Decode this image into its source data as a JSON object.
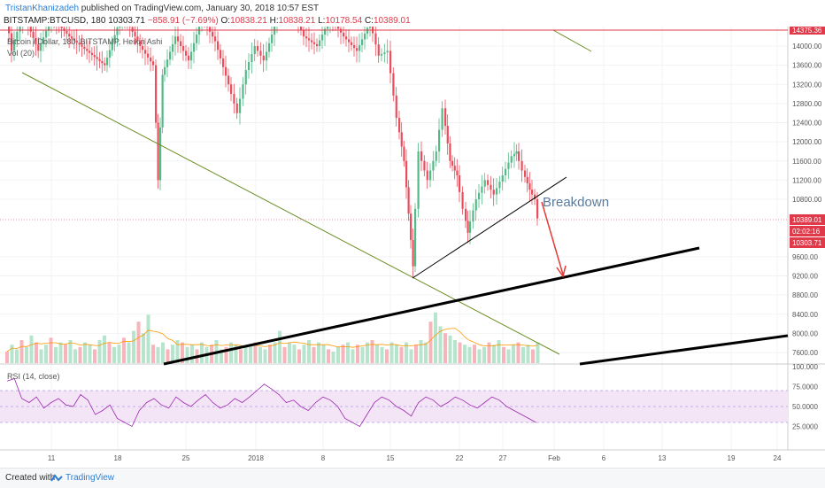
{
  "header": {
    "author": "TristanKhanizadeh",
    "published": " published on TradingView.com, January 30, 2018 10:57 EST",
    "symbol": "BITSTAMP:BTCUSD, 180",
    "last": "10303.71",
    "change": "−858.91 (−7.69%)",
    "open_label": "O:",
    "open": "10838.21",
    "high_label": "H:",
    "high": "10838.21",
    "low_label": "L:",
    "low": "10178.54",
    "close_label": "C:",
    "close": "10389.01"
  },
  "legend": {
    "main": "Bitcoin / Dollar, 180, BITSTAMP, Heikin Ashi",
    "volume": "Vol (20)",
    "rsi": "RSI (14, close)"
  },
  "annotation": "Breakdown",
  "footer": {
    "created": "Created with",
    "brand": "TradingView"
  },
  "colors": {
    "up": "#53b987",
    "down": "#eb4d5c",
    "rsi": "#9c27b0",
    "trend": "#000000",
    "arrow": "#e53935"
  },
  "chart_data": {
    "type": "candlestick",
    "title": "Bitcoin / Dollar, 180, BITSTAMP, Heikin Ashi",
    "price_ticks": [
      "14000.00",
      "13600.00",
      "13200.00",
      "12800.00",
      "12400.00",
      "12000.00",
      "11600.00",
      "11200.00",
      "10800.00",
      "10389.01",
      "02:02:16",
      "10303.71",
      "9600.00",
      "9200.00",
      "8800.00",
      "8400.00",
      "8000.00",
      "7600.00"
    ],
    "top_label": "14375.36",
    "rsi_ticks": [
      "100.000",
      "75.0000",
      "50.0000",
      "25.0000"
    ],
    "x_ticks": [
      "11",
      "18",
      "25",
      "2018",
      "8",
      "15",
      "22",
      "27",
      "Feb",
      "6",
      "13",
      "19",
      "24"
    ],
    "price_path": [
      [
        6,
        15000
      ],
      [
        15,
        13900
      ],
      [
        28,
        14700
      ],
      [
        45,
        13900
      ],
      [
        60,
        14600
      ],
      [
        80,
        14200
      ],
      [
        100,
        13900
      ],
      [
        120,
        13600
      ],
      [
        140,
        14700
      ],
      [
        160,
        14000
      ],
      [
        175,
        13600
      ],
      [
        180,
        11200
      ],
      [
        185,
        13400
      ],
      [
        200,
        14200
      ],
      [
        215,
        13700
      ],
      [
        230,
        14600
      ],
      [
        245,
        14100
      ],
      [
        260,
        13200
      ],
      [
        270,
        12600
      ],
      [
        280,
        13500
      ],
      [
        290,
        14000
      ],
      [
        300,
        13700
      ],
      [
        315,
        14600
      ],
      [
        330,
        14900
      ],
      [
        345,
        14200
      ],
      [
        360,
        14000
      ],
      [
        375,
        14600
      ],
      [
        390,
        14200
      ],
      [
        405,
        13900
      ],
      [
        420,
        14500
      ],
      [
        430,
        13800
      ],
      [
        440,
        13900
      ],
      [
        450,
        12500
      ],
      [
        458,
        11600
      ],
      [
        463,
        10500
      ],
      [
        468,
        9400
      ],
      [
        475,
        11800
      ],
      [
        485,
        11200
      ],
      [
        495,
        11800
      ],
      [
        502,
        12700
      ],
      [
        510,
        11600
      ],
      [
        518,
        11300
      ],
      [
        525,
        10600
      ],
      [
        530,
        10100
      ],
      [
        540,
        10800
      ],
      [
        550,
        11200
      ],
      [
        560,
        10900
      ],
      [
        570,
        11300
      ],
      [
        580,
        11700
      ],
      [
        585,
        11800
      ],
      [
        592,
        11400
      ],
      [
        600,
        11000
      ],
      [
        606,
        10800
      ],
      [
        610,
        10400
      ]
    ],
    "volume": [
      5,
      8,
      6,
      10,
      7,
      12,
      9,
      6,
      8,
      11,
      7,
      9,
      8,
      10,
      6,
      7,
      9,
      8,
      6,
      10,
      12,
      9,
      7,
      8,
      11,
      9,
      14,
      18,
      13,
      21,
      8,
      7,
      9,
      6,
      8,
      10,
      9,
      7,
      8,
      6,
      9,
      7,
      8,
      10,
      6,
      7,
      9,
      8,
      6,
      7,
      8,
      9,
      7,
      6,
      8,
      9,
      14,
      7,
      9,
      8,
      6,
      8,
      10,
      7,
      9,
      8,
      6,
      5,
      7,
      8,
      9,
      6,
      8,
      7,
      9,
      10,
      8,
      7,
      6,
      9,
      8,
      7,
      9,
      6,
      8,
      10,
      9,
      18,
      22,
      16,
      13,
      12,
      10,
      9,
      8,
      7,
      8,
      6,
      7,
      9,
      8,
      10,
      7,
      6,
      8,
      9,
      7,
      8,
      6,
      9
    ],
    "rsi": [
      82,
      85,
      60,
      55,
      62,
      48,
      55,
      60,
      52,
      50,
      65,
      58,
      40,
      45,
      52,
      35,
      30,
      25,
      45,
      55,
      60,
      52,
      48,
      62,
      55,
      50,
      58,
      65,
      55,
      48,
      52,
      60,
      55,
      62,
      70,
      78,
      72,
      65,
      55,
      58,
      50,
      45,
      55,
      62,
      58,
      50,
      35,
      30,
      25,
      40,
      55,
      62,
      58,
      50,
      45,
      38,
      55,
      62,
      58,
      50,
      55,
      62,
      58,
      52,
      48,
      55,
      62,
      58,
      50,
      45,
      40,
      35,
      30
    ]
  }
}
